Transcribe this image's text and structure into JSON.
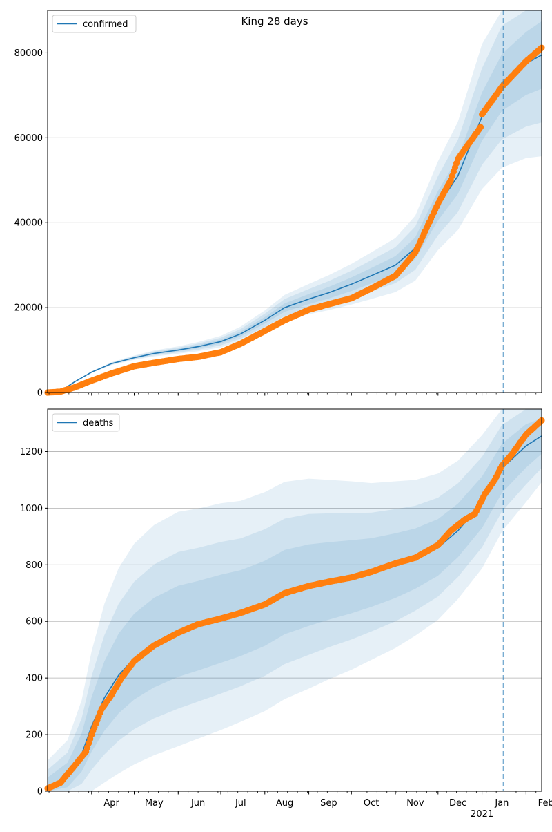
{
  "figure": {
    "title": "King 28 days"
  },
  "chart_data": [
    {
      "type": "line",
      "title": "King 28 days",
      "xlabel": "",
      "ylabel": "",
      "date_range": [
        "2020-03-01",
        "2021-02-12"
      ],
      "ylim": [
        0,
        90000
      ],
      "yticks": [
        0,
        20000,
        40000,
        60000,
        80000
      ],
      "ytick_labels": [
        "0",
        "20000",
        "40000",
        "60000",
        "80000"
      ],
      "grid": "horizontal",
      "legend": "top-left",
      "forecast_start": "2021-01-16",
      "series": [
        {
          "name": "confirmed",
          "kind": "model-line",
          "color": "#1f77b4",
          "points": [
            [
              "2020-03-01",
              0
            ],
            [
              "2020-03-10",
              300
            ],
            [
              "2020-03-20",
              2500
            ],
            [
              "2020-04-01",
              4800
            ],
            [
              "2020-04-15",
              6800
            ],
            [
              "2020-05-01",
              8200
            ],
            [
              "2020-05-15",
              9200
            ],
            [
              "2020-06-01",
              10000
            ],
            [
              "2020-06-15",
              10800
            ],
            [
              "2020-07-01",
              12000
            ],
            [
              "2020-07-15",
              13800
            ],
            [
              "2020-08-01",
              17000
            ],
            [
              "2020-08-15",
              20000
            ],
            [
              "2020-09-01",
              22000
            ],
            [
              "2020-09-15",
              23500
            ],
            [
              "2020-10-01",
              25500
            ],
            [
              "2020-10-15",
              27500
            ],
            [
              "2020-11-01",
              30000
            ],
            [
              "2020-11-15",
              34000
            ],
            [
              "2020-12-01",
              44000
            ],
            [
              "2020-12-15",
              51000
            ],
            [
              "2021-01-01",
              65000
            ],
            [
              "2021-01-15",
              73000
            ],
            [
              "2021-02-01",
              77500
            ],
            [
              "2021-02-12",
              79500
            ]
          ],
          "bands": [
            {
              "width": [
                0,
                0.1
              ]
            },
            {
              "width": [
                0,
                0.2
              ]
            },
            {
              "width": [
                0,
                0.3
              ]
            }
          ]
        },
        {
          "name": "",
          "kind": "observed-markers",
          "color": "#ff7f0e",
          "points": [
            [
              "2020-03-01",
              0
            ],
            [
              "2020-03-10",
              200
            ],
            [
              "2020-03-20",
              1200
            ],
            [
              "2020-04-01",
              2800
            ],
            [
              "2020-04-15",
              4500
            ],
            [
              "2020-05-01",
              6200
            ],
            [
              "2020-05-15",
              7000
            ],
            [
              "2020-06-01",
              7900
            ],
            [
              "2020-06-15",
              8400
            ],
            [
              "2020-07-01",
              9500
            ],
            [
              "2020-07-15",
              11500
            ],
            [
              "2020-08-01",
              14500
            ],
            [
              "2020-08-15",
              17000
            ],
            [
              "2020-09-01",
              19500
            ],
            [
              "2020-09-15",
              20800
            ],
            [
              "2020-10-01",
              22200
            ],
            [
              "2020-10-15",
              24500
            ],
            [
              "2020-11-01",
              27500
            ],
            [
              "2020-11-15",
              33000
            ],
            [
              "2020-12-01",
              44500
            ],
            [
              "2020-12-10",
              50000
            ],
            [
              "2020-12-15",
              55000
            ],
            [
              "2020-12-31",
              62500
            ],
            [
              "2021-01-01",
              65500
            ],
            [
              "2021-01-15",
              72000
            ],
            [
              "2021-02-01",
              78000
            ],
            [
              "2021-02-12",
              81200
            ]
          ]
        }
      ]
    },
    {
      "type": "line",
      "title": "",
      "xlabel": "",
      "ylabel": "",
      "date_range": [
        "2020-03-01",
        "2021-02-12"
      ],
      "ylim": [
        0,
        1350
      ],
      "yticks": [
        0,
        200,
        400,
        600,
        800,
        1000,
        1200
      ],
      "ytick_labels": [
        "0",
        "200",
        "400",
        "600",
        "800",
        "1000",
        "1200"
      ],
      "xtick_labels": [
        "Apr",
        "May",
        "Jun",
        "Jul",
        "Aug",
        "Sep",
        "Oct",
        "Nov",
        "Dec",
        "Jan",
        "Feb"
      ],
      "xtick_dates": [
        "2020-04-01",
        "2020-05-01",
        "2020-06-01",
        "2020-07-01",
        "2020-08-01",
        "2020-09-01",
        "2020-10-01",
        "2020-11-01",
        "2020-12-01",
        "2021-01-01",
        "2021-02-01"
      ],
      "year_label": "2021",
      "grid": "horizontal",
      "legend": "top-left",
      "forecast_start": "2021-01-16",
      "series": [
        {
          "name": "deaths",
          "kind": "model-line",
          "color": "#1f77b4",
          "points": [
            [
              "2020-03-01",
              10
            ],
            [
              "2020-03-15",
              50
            ],
            [
              "2020-03-25",
              130
            ],
            [
              "2020-04-01",
              230
            ],
            [
              "2020-04-10",
              330
            ],
            [
              "2020-04-20",
              410
            ],
            [
              "2020-05-01",
              470
            ],
            [
              "2020-05-15",
              520
            ],
            [
              "2020-06-01",
              560
            ],
            [
              "2020-06-15",
              580
            ],
            [
              "2020-07-01",
              605
            ],
            [
              "2020-07-15",
              625
            ],
            [
              "2020-08-01",
              660
            ],
            [
              "2020-08-15",
              700
            ],
            [
              "2020-09-01",
              725
            ],
            [
              "2020-09-15",
              740
            ],
            [
              "2020-10-01",
              755
            ],
            [
              "2020-10-15",
              770
            ],
            [
              "2020-11-01",
              795
            ],
            [
              "2020-11-15",
              820
            ],
            [
              "2020-12-01",
              860
            ],
            [
              "2020-12-15",
              920
            ],
            [
              "2021-01-01",
              1020
            ],
            [
              "2021-01-15",
              1140
            ],
            [
              "2021-02-01",
              1220
            ],
            [
              "2021-02-12",
              1255
            ]
          ],
          "bands": [
            {
              "width": [
                0.35,
                0.05
              ]
            },
            {
              "width": [
                0.6,
                0.09
              ]
            },
            {
              "width": [
                0.9,
                0.13
              ]
            }
          ]
        },
        {
          "name": "",
          "kind": "observed-markers",
          "color": "#ff7f0e",
          "points": [
            [
              "2020-03-01",
              10
            ],
            [
              "2020-03-10",
              30
            ],
            [
              "2020-03-20",
              90
            ],
            [
              "2020-03-28",
              140
            ],
            [
              "2020-04-01",
              200
            ],
            [
              "2020-04-08",
              290
            ],
            [
              "2020-04-15",
              340
            ],
            [
              "2020-04-22",
              400
            ],
            [
              "2020-05-01",
              460
            ],
            [
              "2020-05-15",
              515
            ],
            [
              "2020-06-01",
              560
            ],
            [
              "2020-06-15",
              590
            ],
            [
              "2020-07-01",
              610
            ],
            [
              "2020-07-15",
              630
            ],
            [
              "2020-08-01",
              660
            ],
            [
              "2020-08-15",
              700
            ],
            [
              "2020-09-01",
              725
            ],
            [
              "2020-09-15",
              740
            ],
            [
              "2020-10-01",
              755
            ],
            [
              "2020-10-15",
              775
            ],
            [
              "2020-11-01",
              805
            ],
            [
              "2020-11-15",
              825
            ],
            [
              "2020-12-01",
              870
            ],
            [
              "2020-12-10",
              920
            ],
            [
              "2020-12-15",
              940
            ],
            [
              "2020-12-20",
              960
            ],
            [
              "2020-12-27",
              980
            ],
            [
              "2021-01-03",
              1050
            ],
            [
              "2021-01-10",
              1100
            ],
            [
              "2021-01-15",
              1150
            ],
            [
              "2021-01-22",
              1190
            ],
            [
              "2021-02-01",
              1260
            ],
            [
              "2021-02-12",
              1310
            ]
          ]
        }
      ]
    }
  ]
}
